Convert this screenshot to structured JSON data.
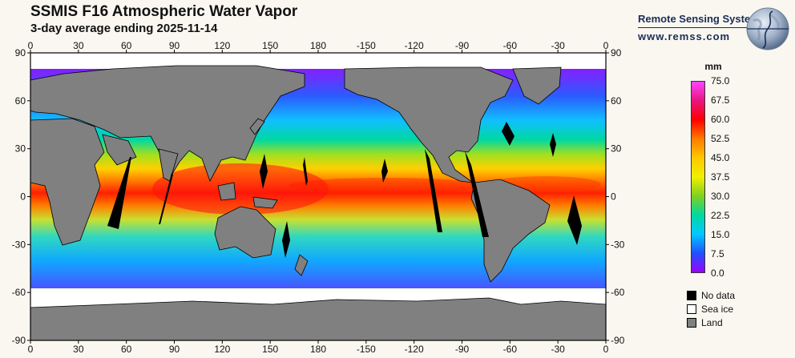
{
  "header": {
    "title": "SSMIS F16 Atmospheric Water Vapor",
    "subtitle": "3-day average ending 2025-11-14"
  },
  "branding": {
    "organization": "Remote Sensing Systems",
    "url": "www.remss.com"
  },
  "map": {
    "x_ticks": [
      "0",
      "30",
      "60",
      "90",
      "120",
      "150",
      "180",
      "-150",
      "-120",
      "-90",
      "-60",
      "-30",
      "0"
    ],
    "y_ticks": [
      "90",
      "60",
      "30",
      "0",
      "-30",
      "-60",
      "-90"
    ],
    "lon_range": [
      0,
      360
    ],
    "lat_range": [
      -90,
      90
    ]
  },
  "colorbar": {
    "unit": "mm",
    "labels": [
      "75.0",
      "67.5",
      "60.0",
      "52.5",
      "45.0",
      "37.5",
      "30.0",
      "22.5",
      "15.0",
      "7.5",
      "0.0"
    ],
    "colors": [
      "#ff44ff",
      "#e8147f",
      "#ff0000",
      "#ff7a00",
      "#ffc800",
      "#f0f000",
      "#7ed020",
      "#00d8a0",
      "#00c8ff",
      "#2050ff",
      "#9a00ff"
    ]
  },
  "legend": [
    {
      "label": "No data",
      "color": "#000000"
    },
    {
      "label": "Sea ice",
      "color": "#ffffff"
    },
    {
      "label": "Land",
      "color": "#808080"
    }
  ]
}
